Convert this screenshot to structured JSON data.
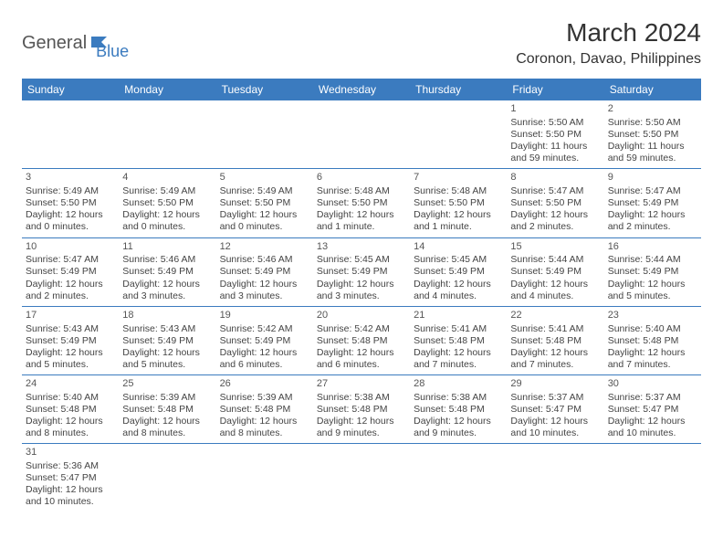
{
  "logo": {
    "part1": "General",
    "part2": "Blue"
  },
  "title": "March 2024",
  "location": "Coronon, Davao, Philippines",
  "colors": {
    "header_bg": "#3b7bbf",
    "header_text": "#ffffff",
    "border": "#3b7bbf",
    "text": "#444444",
    "background": "#ffffff",
    "logo_gray": "#555555",
    "logo_blue": "#3b7bbf"
  },
  "dayNames": [
    "Sunday",
    "Monday",
    "Tuesday",
    "Wednesday",
    "Thursday",
    "Friday",
    "Saturday"
  ],
  "weeks": [
    [
      null,
      null,
      null,
      null,
      null,
      {
        "n": "1",
        "sr": "5:50 AM",
        "ss": "5:50 PM",
        "dl": "11 hours and 59 minutes."
      },
      {
        "n": "2",
        "sr": "5:50 AM",
        "ss": "5:50 PM",
        "dl": "11 hours and 59 minutes."
      }
    ],
    [
      {
        "n": "3",
        "sr": "5:49 AM",
        "ss": "5:50 PM",
        "dl": "12 hours and 0 minutes."
      },
      {
        "n": "4",
        "sr": "5:49 AM",
        "ss": "5:50 PM",
        "dl": "12 hours and 0 minutes."
      },
      {
        "n": "5",
        "sr": "5:49 AM",
        "ss": "5:50 PM",
        "dl": "12 hours and 0 minutes."
      },
      {
        "n": "6",
        "sr": "5:48 AM",
        "ss": "5:50 PM",
        "dl": "12 hours and 1 minute."
      },
      {
        "n": "7",
        "sr": "5:48 AM",
        "ss": "5:50 PM",
        "dl": "12 hours and 1 minute."
      },
      {
        "n": "8",
        "sr": "5:47 AM",
        "ss": "5:50 PM",
        "dl": "12 hours and 2 minutes."
      },
      {
        "n": "9",
        "sr": "5:47 AM",
        "ss": "5:49 PM",
        "dl": "12 hours and 2 minutes."
      }
    ],
    [
      {
        "n": "10",
        "sr": "5:47 AM",
        "ss": "5:49 PM",
        "dl": "12 hours and 2 minutes."
      },
      {
        "n": "11",
        "sr": "5:46 AM",
        "ss": "5:49 PM",
        "dl": "12 hours and 3 minutes."
      },
      {
        "n": "12",
        "sr": "5:46 AM",
        "ss": "5:49 PM",
        "dl": "12 hours and 3 minutes."
      },
      {
        "n": "13",
        "sr": "5:45 AM",
        "ss": "5:49 PM",
        "dl": "12 hours and 3 minutes."
      },
      {
        "n": "14",
        "sr": "5:45 AM",
        "ss": "5:49 PM",
        "dl": "12 hours and 4 minutes."
      },
      {
        "n": "15",
        "sr": "5:44 AM",
        "ss": "5:49 PM",
        "dl": "12 hours and 4 minutes."
      },
      {
        "n": "16",
        "sr": "5:44 AM",
        "ss": "5:49 PM",
        "dl": "12 hours and 5 minutes."
      }
    ],
    [
      {
        "n": "17",
        "sr": "5:43 AM",
        "ss": "5:49 PM",
        "dl": "12 hours and 5 minutes."
      },
      {
        "n": "18",
        "sr": "5:43 AM",
        "ss": "5:49 PM",
        "dl": "12 hours and 5 minutes."
      },
      {
        "n": "19",
        "sr": "5:42 AM",
        "ss": "5:49 PM",
        "dl": "12 hours and 6 minutes."
      },
      {
        "n": "20",
        "sr": "5:42 AM",
        "ss": "5:48 PM",
        "dl": "12 hours and 6 minutes."
      },
      {
        "n": "21",
        "sr": "5:41 AM",
        "ss": "5:48 PM",
        "dl": "12 hours and 7 minutes."
      },
      {
        "n": "22",
        "sr": "5:41 AM",
        "ss": "5:48 PM",
        "dl": "12 hours and 7 minutes."
      },
      {
        "n": "23",
        "sr": "5:40 AM",
        "ss": "5:48 PM",
        "dl": "12 hours and 7 minutes."
      }
    ],
    [
      {
        "n": "24",
        "sr": "5:40 AM",
        "ss": "5:48 PM",
        "dl": "12 hours and 8 minutes."
      },
      {
        "n": "25",
        "sr": "5:39 AM",
        "ss": "5:48 PM",
        "dl": "12 hours and 8 minutes."
      },
      {
        "n": "26",
        "sr": "5:39 AM",
        "ss": "5:48 PM",
        "dl": "12 hours and 8 minutes."
      },
      {
        "n": "27",
        "sr": "5:38 AM",
        "ss": "5:48 PM",
        "dl": "12 hours and 9 minutes."
      },
      {
        "n": "28",
        "sr": "5:38 AM",
        "ss": "5:48 PM",
        "dl": "12 hours and 9 minutes."
      },
      {
        "n": "29",
        "sr": "5:37 AM",
        "ss": "5:47 PM",
        "dl": "12 hours and 10 minutes."
      },
      {
        "n": "30",
        "sr": "5:37 AM",
        "ss": "5:47 PM",
        "dl": "12 hours and 10 minutes."
      }
    ],
    [
      {
        "n": "31",
        "sr": "5:36 AM",
        "ss": "5:47 PM",
        "dl": "12 hours and 10 minutes."
      },
      null,
      null,
      null,
      null,
      null,
      null
    ]
  ],
  "labels": {
    "sunrise": "Sunrise:",
    "sunset": "Sunset:",
    "daylight": "Daylight:"
  }
}
